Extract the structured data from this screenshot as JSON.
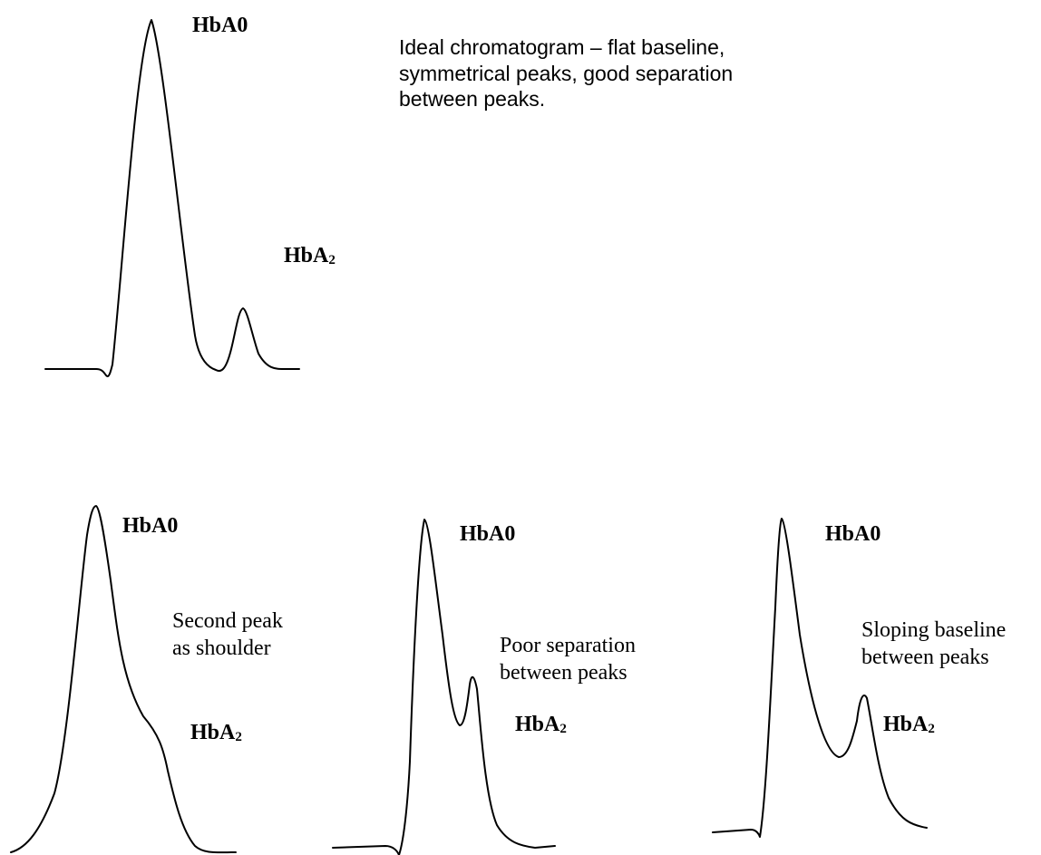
{
  "panels": {
    "ideal": {
      "peak1": {
        "main": "HbA",
        "suffix": "0"
      },
      "peak2": {
        "main": "HbA",
        "suffix": "2"
      },
      "caption": [
        "Ideal chromatogram – flat baseline,",
        "symmetrical peaks, good separation",
        "between peaks."
      ]
    },
    "shoulder": {
      "peak1": {
        "main": "HbA",
        "suffix": "0"
      },
      "peak2": {
        "main": "HbA",
        "suffix": "2"
      },
      "caption": [
        "Second peak",
        "as shoulder"
      ]
    },
    "poor_separation": {
      "peak1": {
        "main": "HbA",
        "suffix": "0"
      },
      "peak2": {
        "main": "HbA",
        "suffix": "2"
      },
      "caption": [
        "Poor separation",
        "between peaks"
      ]
    },
    "sloping_baseline": {
      "peak1": {
        "main": "HbA",
        "suffix": "0"
      },
      "peak2": {
        "main": "HbA",
        "suffix": "2"
      },
      "caption": [
        "Sloping baseline",
        "between peaks"
      ]
    }
  }
}
